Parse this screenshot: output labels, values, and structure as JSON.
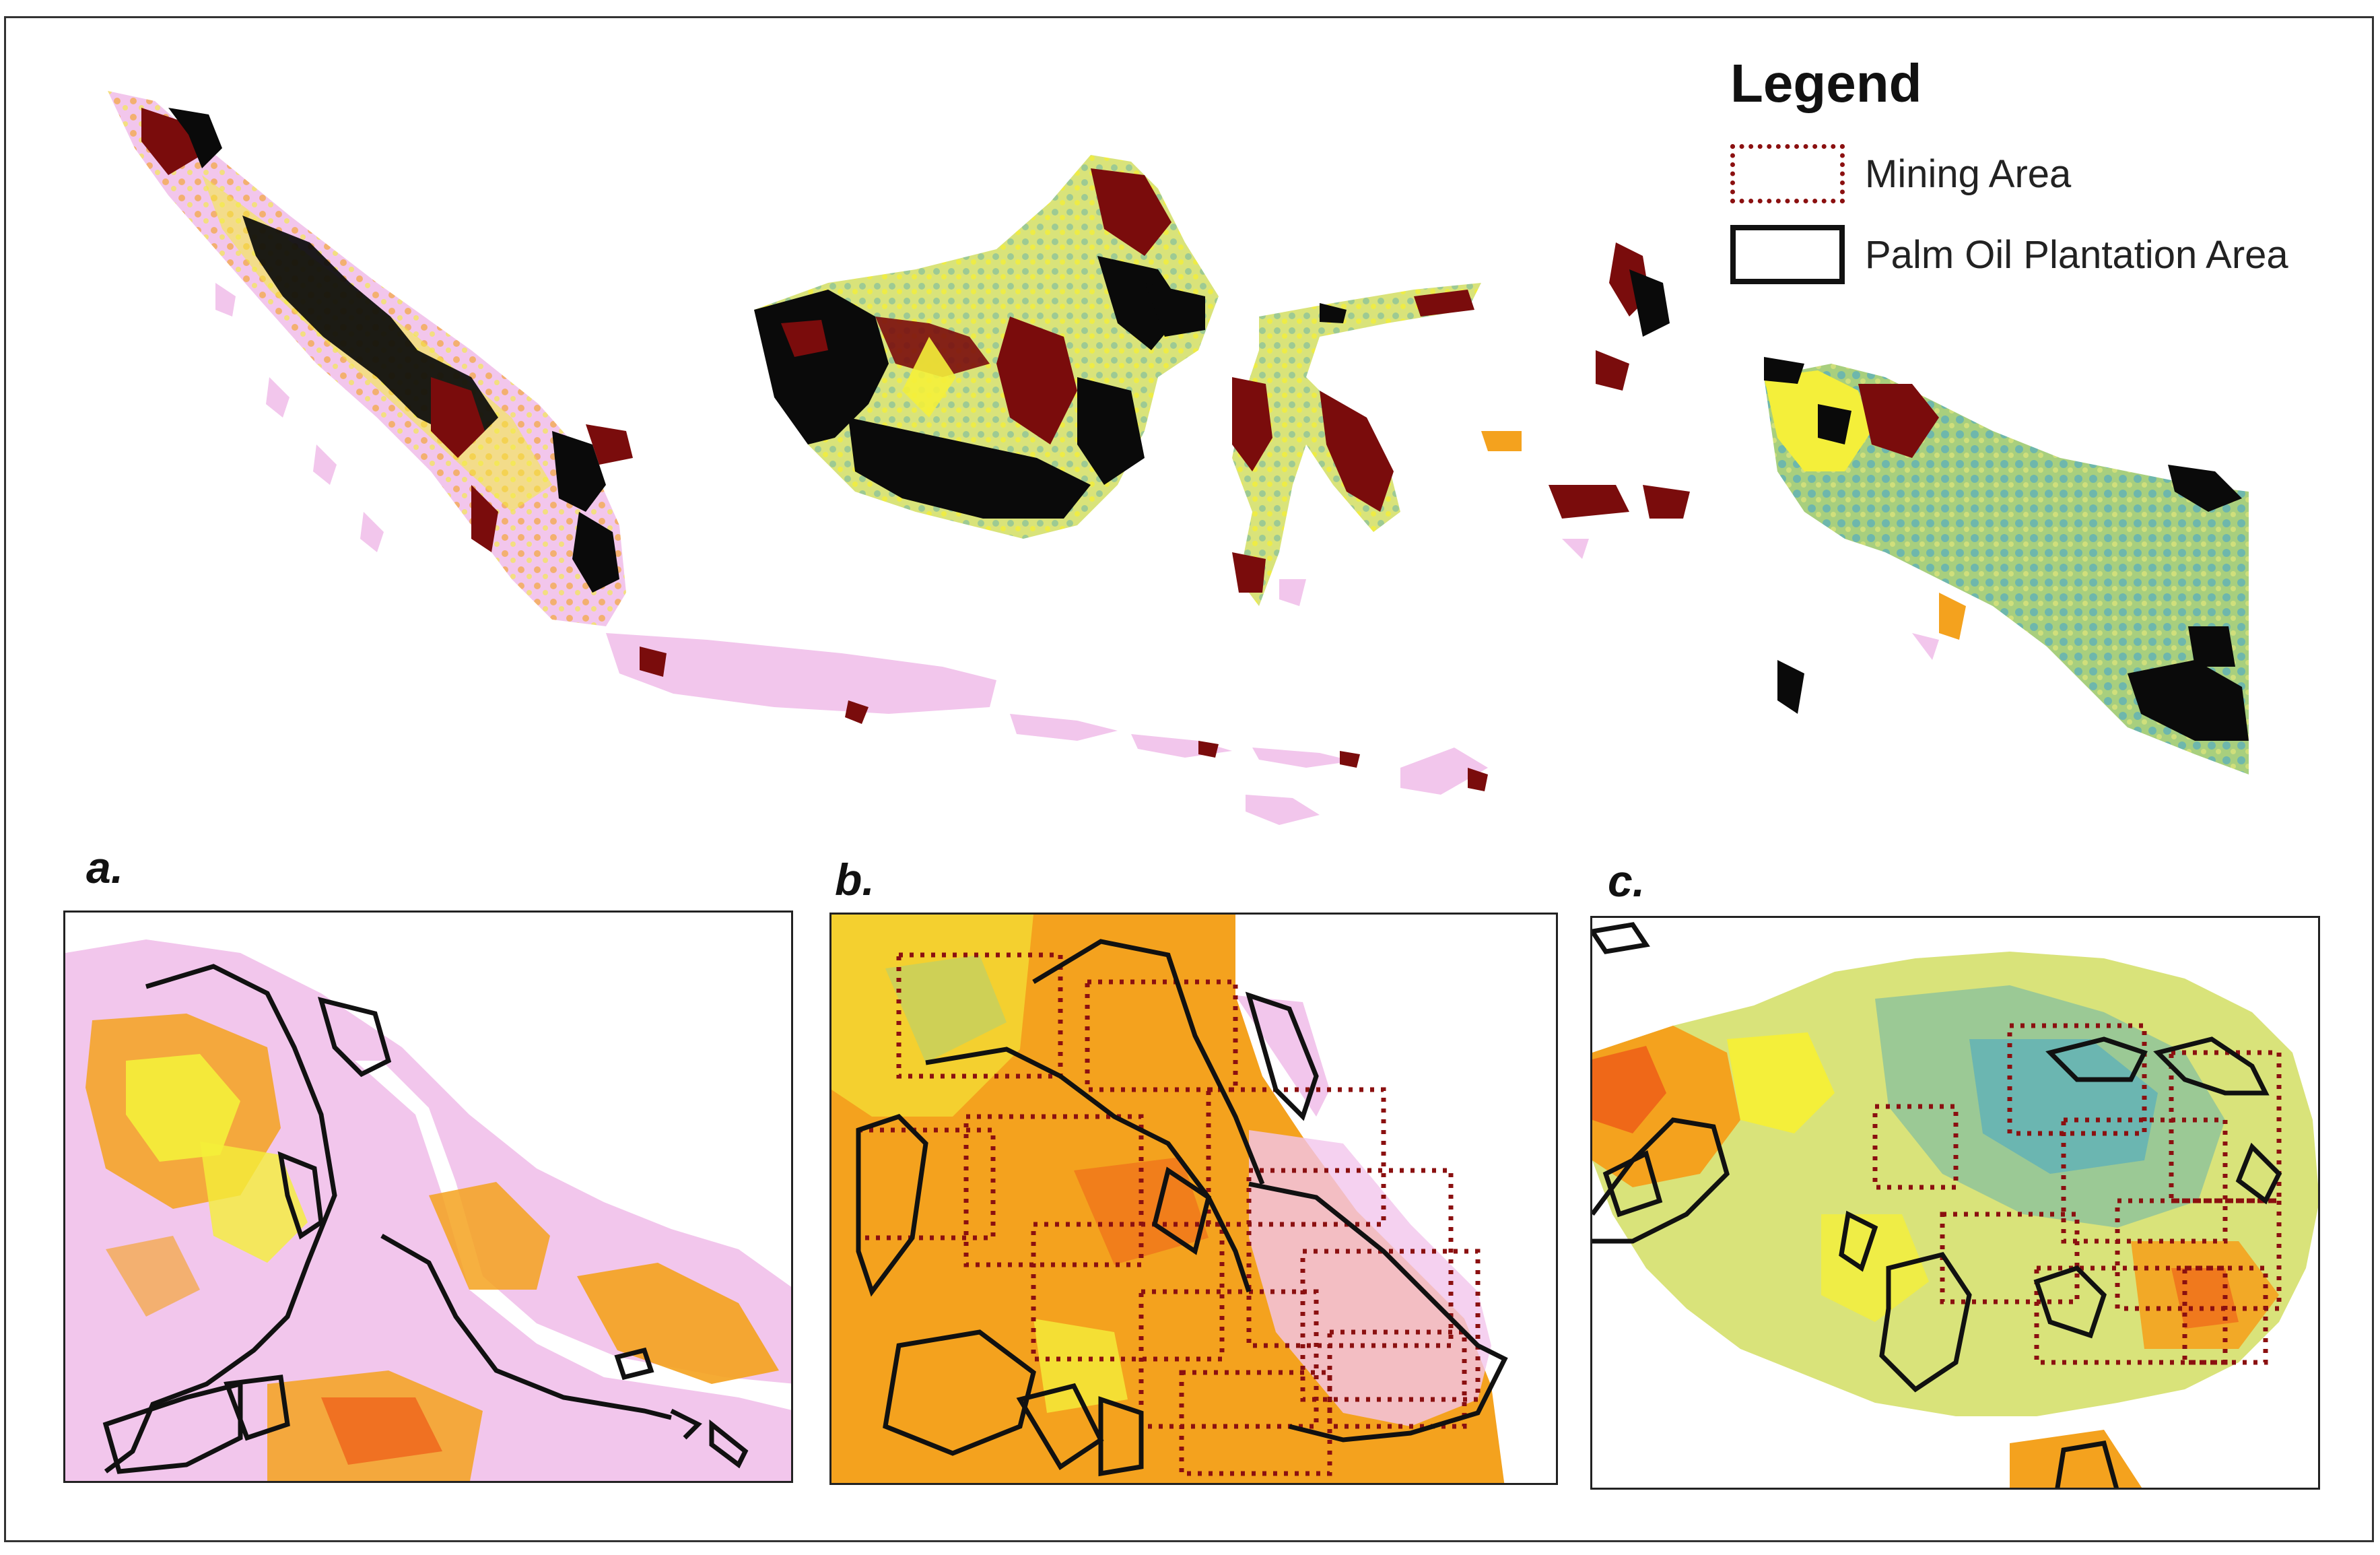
{
  "legend": {
    "title": "Legend",
    "items": [
      {
        "label": "Mining Area",
        "symbol": "dotted-outline",
        "color": "#8b1010"
      },
      {
        "label": "Palm Oil Plantation Area",
        "symbol": "solid-outline",
        "color": "#111111"
      }
    ]
  },
  "panels": [
    {
      "label": "a."
    },
    {
      "label": "b."
    },
    {
      "label": "c."
    }
  ],
  "colors": {
    "land_base": "#f2c6ec",
    "mining_fill": "#7a0c0c",
    "palm_fill": "#0a0a0a",
    "ramp_low": "#ee5a17",
    "ramp_orange": "#f4a21e",
    "ramp_yellow": "#f4ef3a",
    "ramp_green": "#a8cf7e",
    "ramp_teal": "#5fb1b8"
  }
}
